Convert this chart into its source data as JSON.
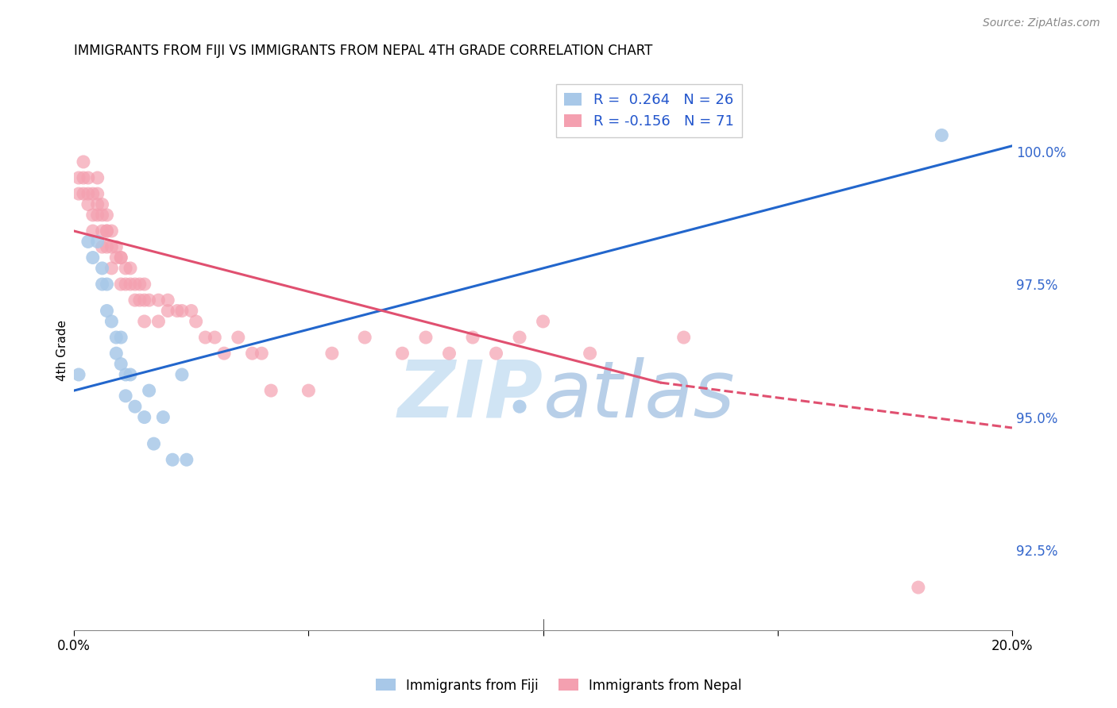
{
  "title": "IMMIGRANTS FROM FIJI VS IMMIGRANTS FROM NEPAL 4TH GRADE CORRELATION CHART",
  "source": "Source: ZipAtlas.com",
  "ylabel": "4th Grade",
  "x_min": 0.0,
  "x_max": 0.2,
  "y_min": 91.0,
  "y_max": 101.5,
  "y_ticks": [
    92.5,
    95.0,
    97.5,
    100.0
  ],
  "fiji_color": "#a8c8e8",
  "nepal_color": "#f4a0b0",
  "fiji_line_color": "#2266cc",
  "nepal_line_color": "#e05070",
  "fiji_line_x0": 0.0,
  "fiji_line_y0": 95.5,
  "fiji_line_x1": 0.2,
  "fiji_line_y1": 100.1,
  "nepal_line_x0": 0.0,
  "nepal_line_y0": 98.5,
  "nepal_line_x1_solid": 0.125,
  "nepal_line_y1_solid": 95.65,
  "nepal_line_x1_dash": 0.2,
  "nepal_line_y1_dash": 94.8,
  "fiji_points_x": [
    0.001,
    0.003,
    0.004,
    0.005,
    0.006,
    0.006,
    0.007,
    0.007,
    0.008,
    0.009,
    0.009,
    0.01,
    0.01,
    0.011,
    0.011,
    0.012,
    0.013,
    0.015,
    0.016,
    0.017,
    0.019,
    0.021,
    0.023,
    0.024,
    0.095,
    0.185
  ],
  "fiji_points_y": [
    95.8,
    98.3,
    98.0,
    98.3,
    97.8,
    97.5,
    97.5,
    97.0,
    96.8,
    96.5,
    96.2,
    96.5,
    96.0,
    95.8,
    95.4,
    95.8,
    95.2,
    95.0,
    95.5,
    94.5,
    95.0,
    94.2,
    95.8,
    94.2,
    95.2,
    100.3
  ],
  "nepal_points_x": [
    0.001,
    0.001,
    0.002,
    0.002,
    0.002,
    0.003,
    0.003,
    0.003,
    0.004,
    0.004,
    0.004,
    0.005,
    0.005,
    0.005,
    0.005,
    0.006,
    0.006,
    0.006,
    0.006,
    0.007,
    0.007,
    0.007,
    0.007,
    0.008,
    0.008,
    0.008,
    0.009,
    0.009,
    0.01,
    0.01,
    0.01,
    0.011,
    0.011,
    0.012,
    0.012,
    0.013,
    0.013,
    0.014,
    0.014,
    0.015,
    0.015,
    0.015,
    0.016,
    0.018,
    0.018,
    0.02,
    0.02,
    0.022,
    0.023,
    0.025,
    0.026,
    0.028,
    0.03,
    0.032,
    0.035,
    0.038,
    0.04,
    0.042,
    0.05,
    0.055,
    0.062,
    0.07,
    0.075,
    0.08,
    0.085,
    0.09,
    0.095,
    0.1,
    0.11,
    0.13,
    0.18
  ],
  "nepal_points_y": [
    99.5,
    99.2,
    99.8,
    99.2,
    99.5,
    99.5,
    99.2,
    99.0,
    99.2,
    98.8,
    98.5,
    99.5,
    99.0,
    98.8,
    99.2,
    99.0,
    98.8,
    98.5,
    98.2,
    98.5,
    98.8,
    98.5,
    98.2,
    98.2,
    97.8,
    98.5,
    98.2,
    98.0,
    98.0,
    97.5,
    98.0,
    97.8,
    97.5,
    97.5,
    97.8,
    97.5,
    97.2,
    97.5,
    97.2,
    97.5,
    97.2,
    96.8,
    97.2,
    96.8,
    97.2,
    97.2,
    97.0,
    97.0,
    97.0,
    97.0,
    96.8,
    96.5,
    96.5,
    96.2,
    96.5,
    96.2,
    96.2,
    95.5,
    95.5,
    96.2,
    96.5,
    96.2,
    96.5,
    96.2,
    96.5,
    96.2,
    96.5,
    96.8,
    96.2,
    96.5,
    91.8
  ],
  "watermark_zip": "ZIP",
  "watermark_atlas": "atlas",
  "watermark_color_zip": "#d0e4f4",
  "watermark_color_atlas": "#b8cfe8",
  "background_color": "#ffffff",
  "grid_color": "#cccccc",
  "legend_fiji_label": "R =  0.264   N = 26",
  "legend_nepal_label": "R = -0.156   N = 71",
  "bottom_legend_fiji": "Immigrants from Fiji",
  "bottom_legend_nepal": "Immigrants from Nepal"
}
